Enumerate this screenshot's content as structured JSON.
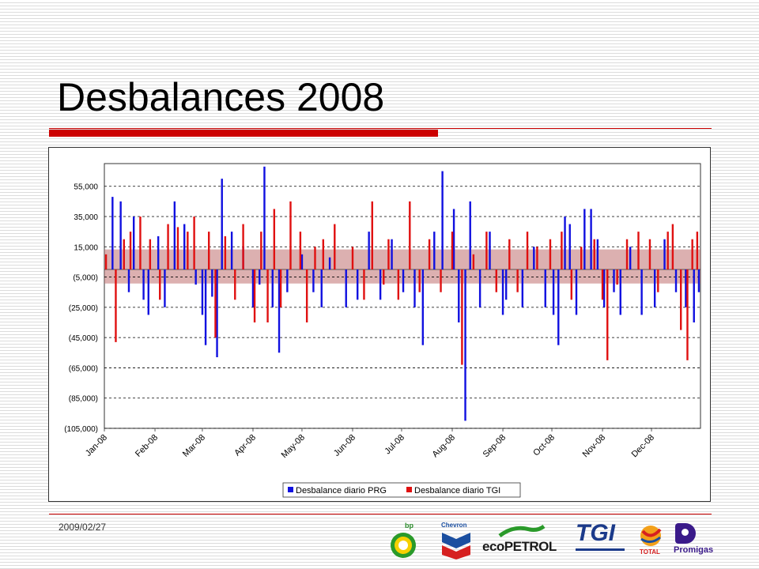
{
  "slide": {
    "title": "Desbalances 2008",
    "footer_date": "2009/02/27"
  },
  "colors": {
    "accent": "#cc0000",
    "series_prg": "#1010e0",
    "series_tgi": "#e01010",
    "band": "#c07070"
  },
  "logos": [
    {
      "name": "bp-logo",
      "text": "bp"
    },
    {
      "name": "chevron-logo",
      "text": "Chevron"
    },
    {
      "name": "ecopetrol-logo",
      "text": "ecoPETROL"
    },
    {
      "name": "tgi-logo",
      "text": "TGI"
    },
    {
      "name": "total-logo",
      "text": "TOTAL"
    },
    {
      "name": "promigas-logo",
      "text": "Promigas"
    }
  ],
  "chart_data": {
    "type": "bar",
    "title": "",
    "xlabel": "",
    "ylabel": "",
    "ylim": [
      -105000,
      70000
    ],
    "yticks": [
      55000,
      35000,
      15000,
      -5000,
      -25000,
      -45000,
      -65000,
      -85000,
      -105000
    ],
    "ytick_labels": [
      "55,000",
      "35,000",
      "15,000",
      "(5,000)",
      "(25,000)",
      "(45,000)",
      "(65,000)",
      "(85,000)",
      "(105,000)"
    ],
    "xtick_labels": [
      "Jan-08",
      "Feb-08",
      "Mar-08",
      "Apr-08",
      "May-08",
      "Jun-08",
      "Jul-08",
      "Aug-08",
      "Sep-08",
      "Oct-08",
      "Nov-08",
      "Dec-08"
    ],
    "x_start": "2008-01-01",
    "x_end": "2008-12-31",
    "grid": "horizontal-dashed",
    "legend_position": "bottom",
    "tolerance_band": [
      -3000,
      7000
    ],
    "series": [
      {
        "name": "Desbalance diario PRG",
        "points": [
          [
            "2008-01-06",
            48000
          ],
          [
            "2008-01-11",
            45000
          ],
          [
            "2008-01-16",
            -15000
          ],
          [
            "2008-01-19",
            35000
          ],
          [
            "2008-01-25",
            -20000
          ],
          [
            "2008-01-28",
            -30000
          ],
          [
            "2008-02-03",
            22000
          ],
          [
            "2008-02-07",
            -25000
          ],
          [
            "2008-02-13",
            45000
          ],
          [
            "2008-02-19",
            30000
          ],
          [
            "2008-02-26",
            -10000
          ],
          [
            "2008-03-01",
            -30000
          ],
          [
            "2008-03-03",
            -50000
          ],
          [
            "2008-03-07",
            -18000
          ],
          [
            "2008-03-10",
            -58000
          ],
          [
            "2008-03-13",
            60000
          ],
          [
            "2008-03-19",
            25000
          ],
          [
            "2008-03-26",
            15000
          ],
          [
            "2008-04-01",
            -25000
          ],
          [
            "2008-04-05",
            -10000
          ],
          [
            "2008-04-08",
            68000
          ],
          [
            "2008-04-13",
            -25000
          ],
          [
            "2008-04-17",
            -55000
          ],
          [
            "2008-04-22",
            -15000
          ],
          [
            "2008-05-01",
            10000
          ],
          [
            "2008-05-08",
            -15000
          ],
          [
            "2008-05-13",
            -25000
          ],
          [
            "2008-05-18",
            8000
          ],
          [
            "2008-05-28",
            -25000
          ],
          [
            "2008-06-04",
            -20000
          ],
          [
            "2008-06-11",
            25000
          ],
          [
            "2008-06-18",
            -20000
          ],
          [
            "2008-06-25",
            20000
          ],
          [
            "2008-07-02",
            -15000
          ],
          [
            "2008-07-09",
            -25000
          ],
          [
            "2008-07-14",
            -50000
          ],
          [
            "2008-07-21",
            25000
          ],
          [
            "2008-07-26",
            65000
          ],
          [
            "2008-08-02",
            40000
          ],
          [
            "2008-08-05",
            -35000
          ],
          [
            "2008-08-09",
            -100000
          ],
          [
            "2008-08-12",
            45000
          ],
          [
            "2008-08-18",
            -25000
          ],
          [
            "2008-08-24",
            25000
          ],
          [
            "2008-09-01",
            -30000
          ],
          [
            "2008-09-03",
            -20000
          ],
          [
            "2008-09-13",
            -25000
          ],
          [
            "2008-09-20",
            15000
          ],
          [
            "2008-09-27",
            -25000
          ],
          [
            "2008-10-02",
            -30000
          ],
          [
            "2008-10-05",
            -50000
          ],
          [
            "2008-10-09",
            35000
          ],
          [
            "2008-10-12",
            30000
          ],
          [
            "2008-10-16",
            -30000
          ],
          [
            "2008-10-21",
            40000
          ],
          [
            "2008-10-25",
            40000
          ],
          [
            "2008-10-29",
            20000
          ],
          [
            "2008-11-02",
            -25000
          ],
          [
            "2008-11-08",
            -15000
          ],
          [
            "2008-11-12",
            -30000
          ],
          [
            "2008-11-18",
            15000
          ],
          [
            "2008-11-25",
            -30000
          ],
          [
            "2008-12-03",
            -25000
          ],
          [
            "2008-12-09",
            20000
          ],
          [
            "2008-12-16",
            -15000
          ],
          [
            "2008-12-22",
            -25000
          ],
          [
            "2008-12-27",
            -35000
          ],
          [
            "2008-12-30",
            -15000
          ]
        ]
      },
      {
        "name": "Desbalance diario TGI",
        "points": [
          [
            "2008-01-02",
            10000
          ],
          [
            "2008-01-08",
            -48000
          ],
          [
            "2008-01-13",
            20000
          ],
          [
            "2008-01-17",
            25000
          ],
          [
            "2008-01-23",
            35000
          ],
          [
            "2008-01-29",
            20000
          ],
          [
            "2008-02-04",
            -20000
          ],
          [
            "2008-02-09",
            30000
          ],
          [
            "2008-02-15",
            28000
          ],
          [
            "2008-02-21",
            25000
          ],
          [
            "2008-02-25",
            35000
          ],
          [
            "2008-03-05",
            25000
          ],
          [
            "2008-03-09",
            -45000
          ],
          [
            "2008-03-15",
            22000
          ],
          [
            "2008-03-21",
            -20000
          ],
          [
            "2008-03-26",
            30000
          ],
          [
            "2008-04-02",
            -35000
          ],
          [
            "2008-04-06",
            25000
          ],
          [
            "2008-04-10",
            -35000
          ],
          [
            "2008-04-14",
            40000
          ],
          [
            "2008-04-18",
            -25000
          ],
          [
            "2008-04-24",
            45000
          ],
          [
            "2008-04-30",
            25000
          ],
          [
            "2008-05-04",
            -35000
          ],
          [
            "2008-05-09",
            15000
          ],
          [
            "2008-05-14",
            20000
          ],
          [
            "2008-05-21",
            30000
          ],
          [
            "2008-06-01",
            15000
          ],
          [
            "2008-06-08",
            -20000
          ],
          [
            "2008-06-13",
            45000
          ],
          [
            "2008-06-20",
            -10000
          ],
          [
            "2008-06-23",
            20000
          ],
          [
            "2008-06-29",
            -20000
          ],
          [
            "2008-07-06",
            45000
          ],
          [
            "2008-07-12",
            -15000
          ],
          [
            "2008-07-18",
            20000
          ],
          [
            "2008-07-25",
            -15000
          ],
          [
            "2008-08-01",
            25000
          ],
          [
            "2008-08-07",
            -63000
          ],
          [
            "2008-08-14",
            10000
          ],
          [
            "2008-08-22",
            25000
          ],
          [
            "2008-08-28",
            -15000
          ],
          [
            "2008-09-05",
            20000
          ],
          [
            "2008-09-10",
            -15000
          ],
          [
            "2008-09-16",
            25000
          ],
          [
            "2008-09-22",
            15000
          ],
          [
            "2008-09-30",
            20000
          ],
          [
            "2008-10-07",
            25000
          ],
          [
            "2008-10-13",
            -20000
          ],
          [
            "2008-10-19",
            15000
          ],
          [
            "2008-10-27",
            20000
          ],
          [
            "2008-11-01",
            -20000
          ],
          [
            "2008-11-04",
            -60000
          ],
          [
            "2008-11-10",
            -10000
          ],
          [
            "2008-11-16",
            20000
          ],
          [
            "2008-11-23",
            25000
          ],
          [
            "2008-11-30",
            20000
          ],
          [
            "2008-12-05",
            -15000
          ],
          [
            "2008-12-11",
            25000
          ],
          [
            "2008-12-14",
            30000
          ],
          [
            "2008-12-19",
            -40000
          ],
          [
            "2008-12-23",
            -60000
          ],
          [
            "2008-12-26",
            20000
          ],
          [
            "2008-12-29",
            25000
          ]
        ]
      }
    ]
  }
}
